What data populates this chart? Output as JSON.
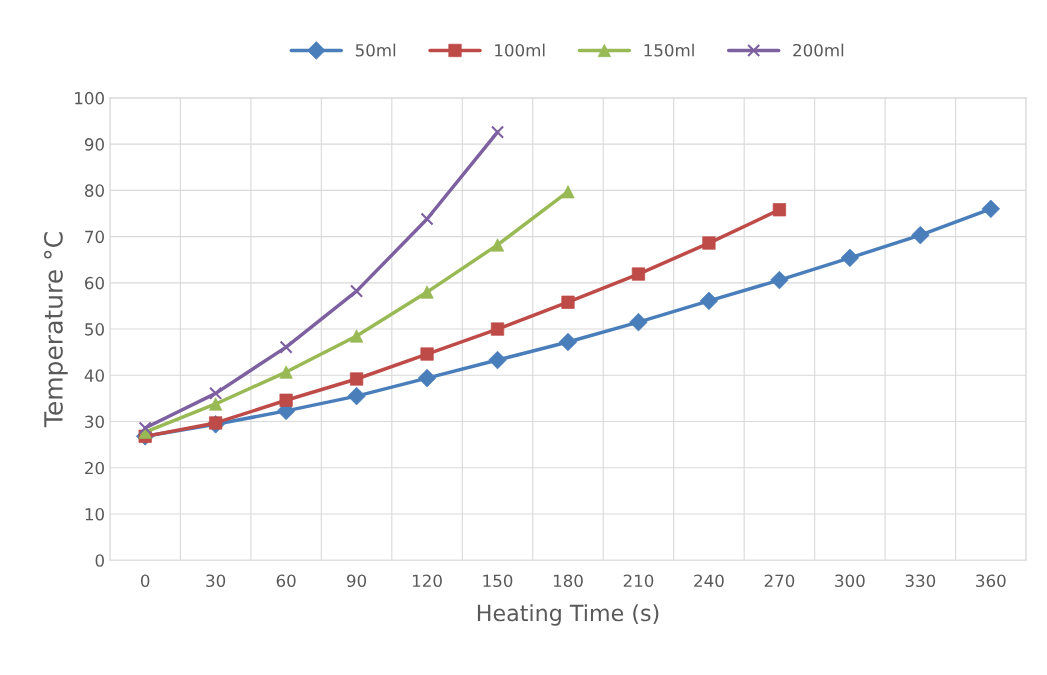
{
  "chart_data": {
    "type": "line",
    "xlabel": "Heating Time (s)",
    "ylabel": "Temperature °C",
    "categories": [
      "0",
      "30",
      "60",
      "90",
      "120",
      "150",
      "180",
      "210",
      "240",
      "270",
      "300",
      "330",
      "360"
    ],
    "series": [
      {
        "name": "50ml",
        "color": "#4a7ebb",
        "marker": "diamond",
        "values": [
          26.8,
          29.4,
          32.3,
          35.5,
          39.4,
          43.3,
          47.2,
          51.5,
          56.1,
          60.6,
          65.4,
          70.3,
          76.0
        ]
      },
      {
        "name": "100ml",
        "color": "#be4b48",
        "marker": "square",
        "values": [
          26.8,
          29.7,
          34.6,
          39.2,
          44.6,
          50.0,
          55.8,
          61.9,
          68.6,
          75.8,
          null,
          null,
          null
        ]
      },
      {
        "name": "150ml",
        "color": "#98b954",
        "marker": "triangle",
        "values": [
          27.7,
          33.8,
          40.7,
          48.5,
          58.0,
          68.2,
          79.7,
          null,
          null,
          null,
          null,
          null,
          null
        ]
      },
      {
        "name": "200ml",
        "color": "#7d60a0",
        "marker": "cross",
        "values": [
          28.6,
          36.1,
          46.1,
          58.2,
          73.8,
          92.6,
          null,
          null,
          null,
          null,
          null,
          null,
          null
        ]
      }
    ],
    "ylim": [
      0,
      100
    ],
    "yticks": [
      0,
      10,
      20,
      30,
      40,
      50,
      60,
      70,
      80,
      90,
      100
    ],
    "grid": true,
    "legend": "top",
    "line_style": "solid"
  }
}
